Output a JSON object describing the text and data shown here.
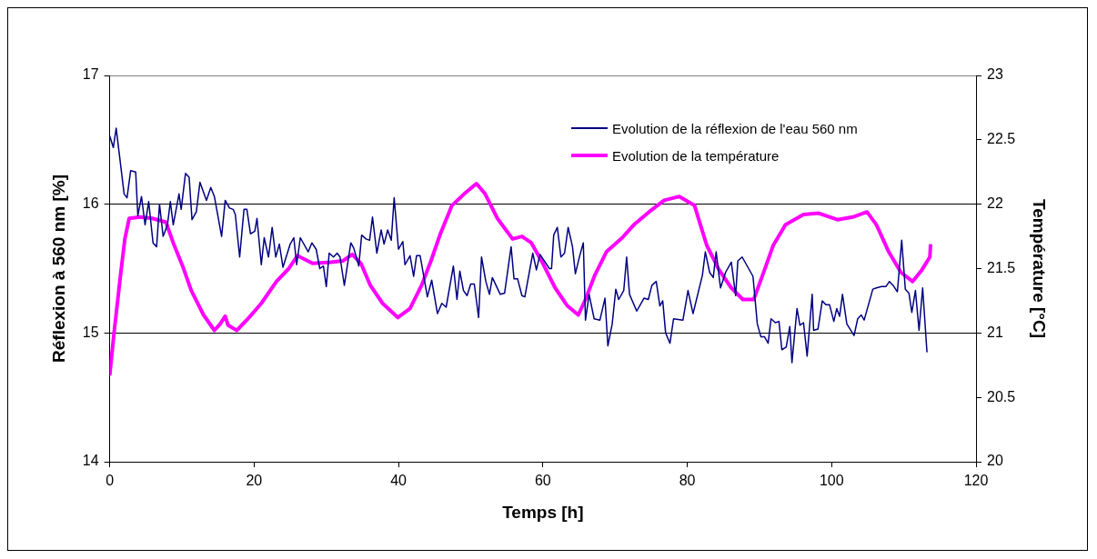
{
  "chart_data": {
    "type": "line",
    "xlabel": "Temps [h]",
    "ylabel": "Réflexion à 560 nm [%]",
    "y2label": "Température [°C]",
    "xlim": [
      0,
      120
    ],
    "xticks": [
      0,
      20,
      40,
      60,
      80,
      100,
      120
    ],
    "ylim": [
      14,
      17
    ],
    "yticks": [
      14,
      15,
      16,
      17
    ],
    "y2lim": [
      20,
      23
    ],
    "y2ticks": [
      20,
      20.5,
      21,
      21.5,
      22,
      22.5,
      23
    ],
    "grid": "y",
    "legend": "top right",
    "marker": "none",
    "line_style": "solid",
    "series": [
      {
        "name": "Evolution de la réflexion de l'eau 560 nm",
        "color": "#000080",
        "x": [
          0,
          0.5,
          0.9,
          2.0,
          2.4,
          2.9,
          3.6,
          3.9,
          4.4,
          4.9,
          5.4,
          6.0,
          6.5,
          6.9,
          7.4,
          8.0,
          8.4,
          8.8,
          9.6,
          9.9,
          10.5,
          11.0,
          11.4,
          12.0,
          12.5,
          13.4,
          14.0,
          14.5,
          15.5,
          16.0,
          16.6,
          17.1,
          17.4,
          18.0,
          18.6,
          19.0,
          19.5,
          20.1,
          20.4,
          21.0,
          21.4,
          22.0,
          22.5,
          23.0,
          23.5,
          24.0,
          25.0,
          25.5,
          25.9,
          26.4,
          27.5,
          28.0,
          28.6,
          29.1,
          29.6,
          30.0,
          30.4,
          31.0,
          31.5,
          31.9,
          32.5,
          33.4,
          33.8,
          34.5,
          34.9,
          35.5,
          36.0,
          36.4,
          37.0,
          37.6,
          38.0,
          38.5,
          39.0,
          39.4,
          40.0,
          40.6,
          40.9,
          41.6,
          42.1,
          42.5,
          43.0,
          44.0,
          44.6,
          45.4,
          46.0,
          46.6,
          47.6,
          48.1,
          48.5,
          49.0,
          49.5,
          50.0,
          50.5,
          51.1,
          51.5,
          52.1,
          52.6,
          53.0,
          54.1,
          54.7,
          55.6,
          56.0,
          56.5,
          57.1,
          57.5,
          58.6,
          59.1,
          59.6,
          60.9,
          61.2,
          61.5,
          62.0,
          62.5,
          63.0,
          63.5,
          64.1,
          64.5,
          65.1,
          65.6,
          65.9,
          66.4,
          67.1,
          67.9,
          68.6,
          69.0,
          69.6,
          70.1,
          70.5,
          71.2,
          71.6,
          72.0,
          73.0,
          74.0,
          74.6,
          75.1,
          75.7,
          76.2,
          76.6,
          77.0,
          77.6,
          78.1,
          79.4,
          80.1,
          80.8,
          82.1,
          82.5,
          83.1,
          83.6,
          84.0,
          84.6,
          85.3,
          86.1,
          86.7,
          87.0,
          87.6,
          89.1,
          89.7,
          90.2,
          90.7,
          91.2,
          91.6,
          92.2,
          92.7,
          93.1,
          93.7,
          94.2,
          94.5,
          95.2,
          95.6,
          96.1,
          96.6,
          97.3,
          97.5,
          98.1,
          98.7,
          99.2,
          99.7,
          100.3,
          100.7,
          101.1,
          101.5,
          102.1,
          103.1,
          103.6,
          104.1,
          104.5,
          105.7,
          106.2,
          106.9,
          107.5,
          108.0,
          108.5,
          109.1,
          109.7,
          110.2,
          110.7,
          111.1,
          111.6,
          112.1,
          112.6,
          113.2
        ],
        "values": [
          16.53,
          16.44,
          16.59,
          16.08,
          16.05,
          16.26,
          16.25,
          15.91,
          16.06,
          15.84,
          16.02,
          15.7,
          15.67,
          16.0,
          15.75,
          15.84,
          16.02,
          15.84,
          16.08,
          15.96,
          16.24,
          16.21,
          15.88,
          15.94,
          16.17,
          16.03,
          16.13,
          16.06,
          15.75,
          16.03,
          15.97,
          15.96,
          15.92,
          15.59,
          15.96,
          15.96,
          15.77,
          15.79,
          15.89,
          15.53,
          15.74,
          15.59,
          15.82,
          15.59,
          15.69,
          15.51,
          15.69,
          15.74,
          15.53,
          15.74,
          15.63,
          15.7,
          15.65,
          15.5,
          15.52,
          15.36,
          15.62,
          15.59,
          15.62,
          15.59,
          15.37,
          15.7,
          15.66,
          15.52,
          15.76,
          15.73,
          15.72,
          15.9,
          15.62,
          15.8,
          15.69,
          15.8,
          15.72,
          16.05,
          15.65,
          15.71,
          15.53,
          15.6,
          15.44,
          15.6,
          15.6,
          15.28,
          15.41,
          15.15,
          15.23,
          15.2,
          15.52,
          15.26,
          15.48,
          15.33,
          15.29,
          15.38,
          15.38,
          15.12,
          15.59,
          15.4,
          15.3,
          15.43,
          15.3,
          15.31,
          15.67,
          15.42,
          15.42,
          15.29,
          15.28,
          15.62,
          15.49,
          15.61,
          15.5,
          15.5,
          15.76,
          15.82,
          15.59,
          15.62,
          15.82,
          15.67,
          15.46,
          15.6,
          15.7,
          15.1,
          15.3,
          15.11,
          15.1,
          15.27,
          14.9,
          15.07,
          15.34,
          15.26,
          15.33,
          15.59,
          15.3,
          15.17,
          15.27,
          15.26,
          15.37,
          15.4,
          15.21,
          15.25,
          15.0,
          14.92,
          15.11,
          15.1,
          15.33,
          15.15,
          15.45,
          15.63,
          15.47,
          15.43,
          15.63,
          15.35,
          15.47,
          15.55,
          15.29,
          15.56,
          15.59,
          15.44,
          15.07,
          14.97,
          14.97,
          14.92,
          15.11,
          15.08,
          15.09,
          14.87,
          14.89,
          15.05,
          14.77,
          15.19,
          15.06,
          15.08,
          14.82,
          15.3,
          15.02,
          15.03,
          15.25,
          15.22,
          15.22,
          15.09,
          15.19,
          15.13,
          15.3,
          15.07,
          14.98,
          15.11,
          15.14,
          15.1,
          15.34,
          15.35,
          15.36,
          15.36,
          15.4,
          15.37,
          15.32,
          15.72,
          15.34,
          15.31,
          15.16,
          15.33,
          15.02,
          15.35,
          14.85
        ]
      },
      {
        "name": "Evolution de la température",
        "color": "#ff00ff",
        "axis": "y2",
        "x": [
          0,
          0.6,
          1.5,
          2.1,
          2.7,
          4.2,
          5.9,
          7.8,
          8.8,
          10.1,
          11.3,
          13.0,
          14.5,
          15.3,
          16.0,
          16.4,
          17.6,
          19.3,
          21.0,
          23.1,
          24.8,
          26.0,
          28.1,
          30.6,
          32.3,
          33.6,
          34.8,
          36.1,
          37.8,
          39.9,
          41.6,
          43.2,
          44.5,
          45.8,
          47.4,
          49.1,
          50.8,
          52.0,
          53.7,
          55.8,
          57.1,
          58.4,
          60.0,
          61.7,
          63.4,
          64.9,
          65.9,
          67.2,
          68.8,
          71.0,
          72.6,
          74.7,
          76.8,
          78.9,
          81.0,
          82.7,
          84.4,
          86.1,
          87.7,
          89.2,
          90.7,
          91.9,
          93.6,
          96.1,
          98.2,
          100.8,
          102.9,
          104.9,
          106.2,
          107.9,
          109.6,
          111.2,
          112.5,
          113.6,
          113.7
        ],
        "values": [
          20.67,
          21.0,
          21.45,
          21.73,
          21.89,
          21.9,
          21.89,
          21.86,
          21.7,
          21.52,
          21.33,
          21.14,
          21.02,
          21.07,
          21.13,
          21.06,
          21.02,
          21.12,
          21.23,
          21.4,
          21.5,
          21.6,
          21.54,
          21.55,
          21.56,
          21.61,
          21.54,
          21.37,
          21.23,
          21.12,
          21.19,
          21.37,
          21.56,
          21.77,
          21.99,
          22.08,
          22.16,
          22.08,
          21.89,
          21.73,
          21.75,
          21.7,
          21.54,
          21.35,
          21.21,
          21.14,
          21.26,
          21.45,
          21.63,
          21.74,
          21.84,
          21.94,
          22.03,
          22.06,
          21.99,
          21.68,
          21.49,
          21.35,
          21.26,
          21.26,
          21.49,
          21.68,
          21.84,
          21.92,
          21.93,
          21.88,
          21.9,
          21.94,
          21.84,
          21.63,
          21.47,
          21.4,
          21.49,
          21.59,
          21.69
        ]
      }
    ]
  }
}
